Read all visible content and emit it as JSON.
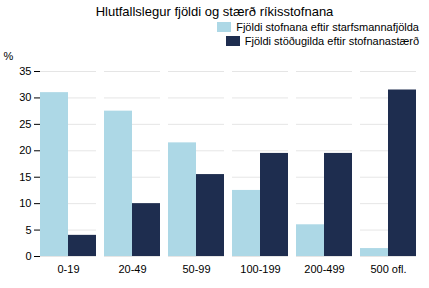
{
  "chart_data": {
    "type": "bar",
    "title": "Hlutfallslegur fjöldi og stærð ríkisstofnana",
    "categories": [
      "0-19",
      "20-49",
      "50-99",
      "100-199",
      "200-499",
      "500 ofl."
    ],
    "series": [
      {
        "name": "Fjöldi stofnana eftir starfsmannafjölda",
        "color": "#add8e6",
        "values": [
          31.0,
          27.5,
          21.5,
          12.5,
          6.0,
          1.5
        ]
      },
      {
        "name": "Fjöldi stöðugilda eftir stofnanastærð",
        "color": "#1e2d4f",
        "values": [
          4.0,
          10.0,
          15.5,
          19.5,
          19.5,
          31.5
        ]
      }
    ],
    "ylabel": "%",
    "ylim": [
      0,
      35
    ],
    "yticks": [
      0,
      5,
      10,
      15,
      20,
      25,
      30,
      35
    ],
    "grid": true,
    "legend": "upper right"
  }
}
